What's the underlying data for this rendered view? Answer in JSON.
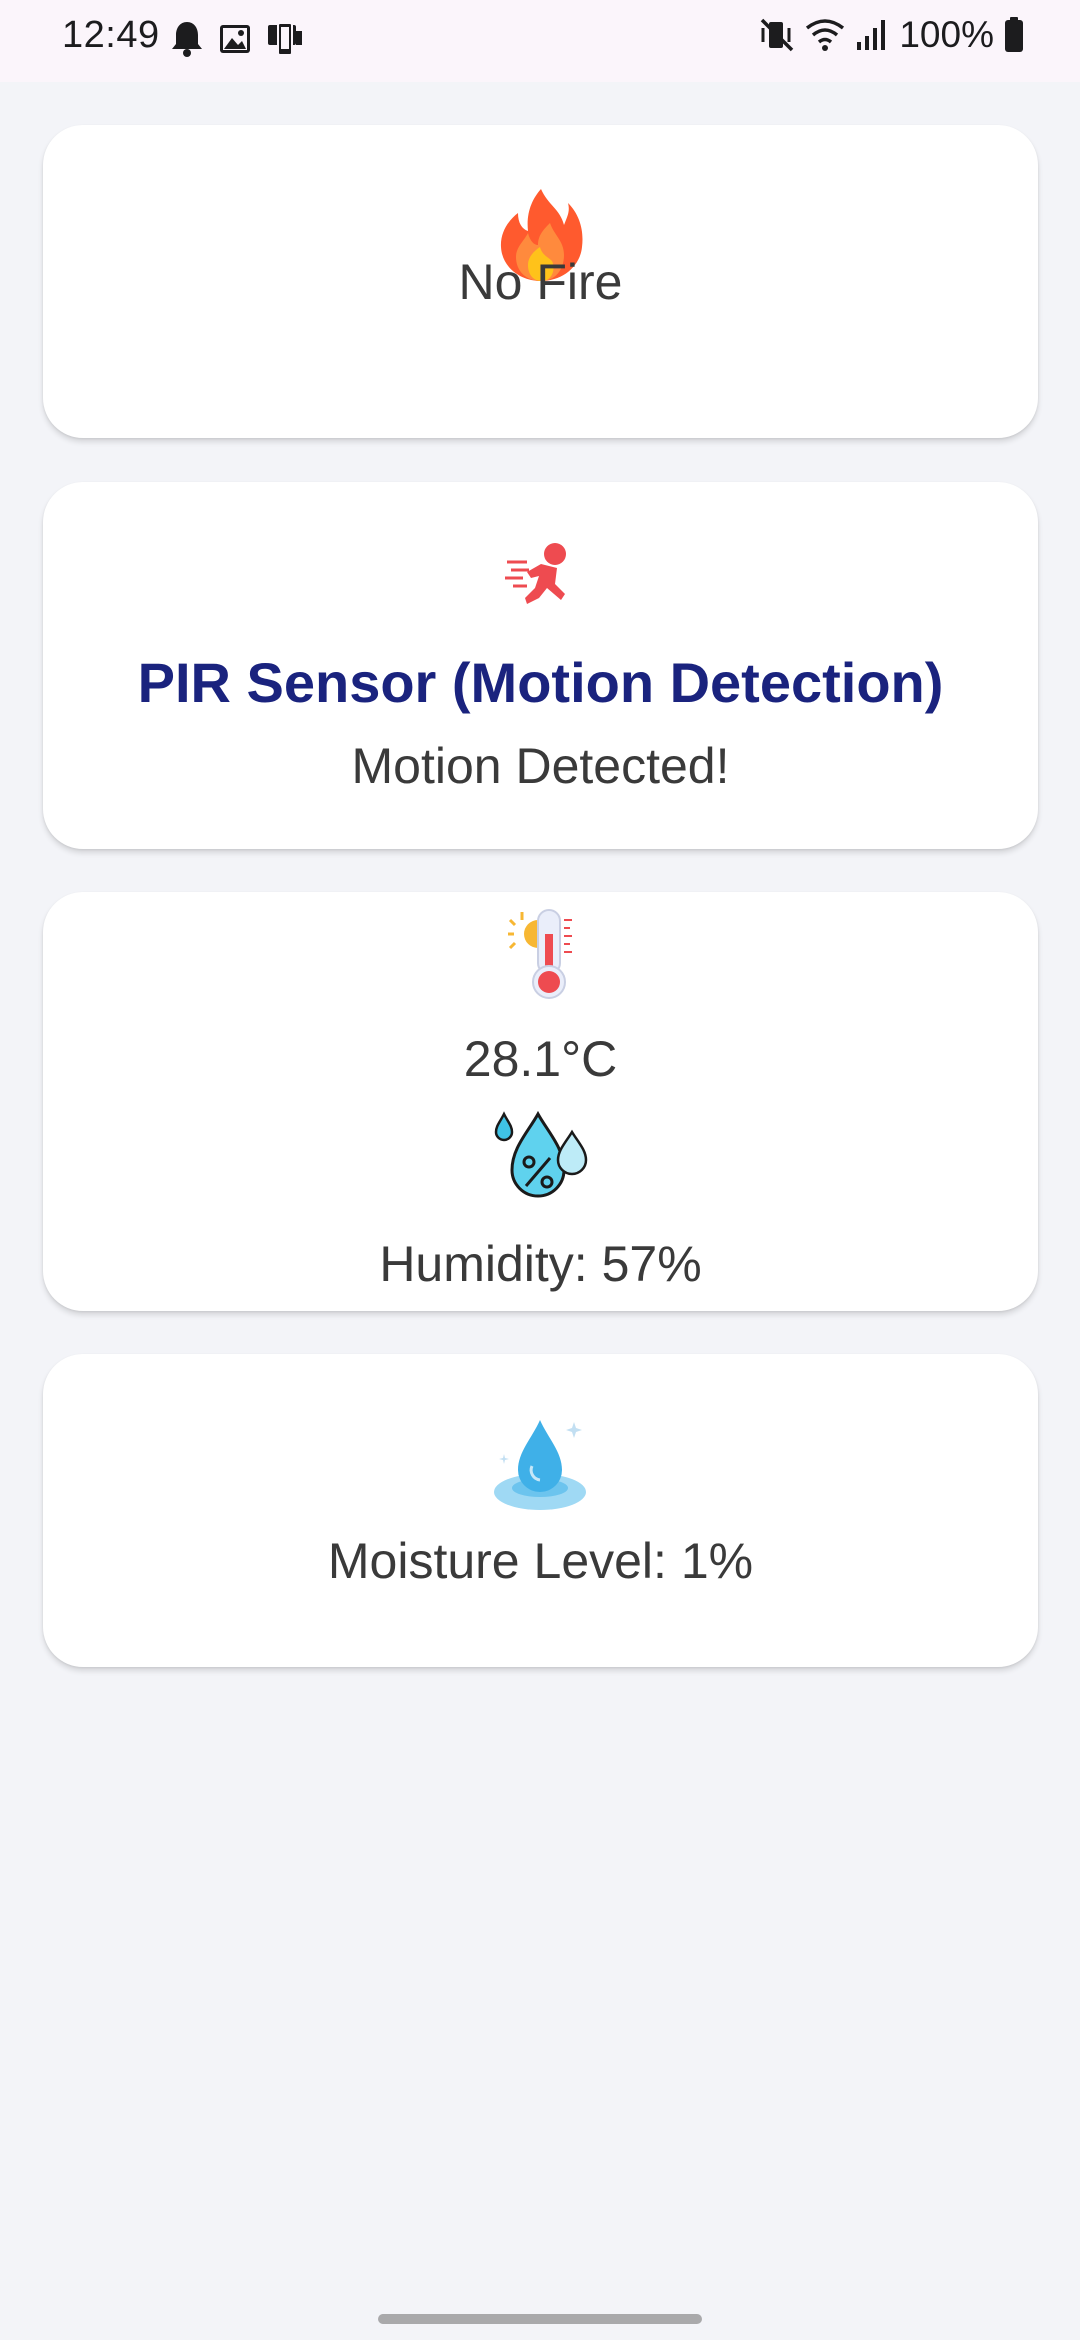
{
  "status_bar": {
    "time": "12:49",
    "battery": "100%"
  },
  "cards": {
    "fire": {
      "icon": "fire-icon",
      "status": "No Fire"
    },
    "pir": {
      "icon": "running-person-icon",
      "title": "PIR Sensor (Motion Detection)",
      "status": "Motion Detected!"
    },
    "climate": {
      "temp_icon": "thermometer-sun-icon",
      "temperature": "28.1°C",
      "humidity_icon": "humidity-drops-icon",
      "humidity": "Humidity: 57%"
    },
    "moisture": {
      "icon": "water-drop-icon",
      "level": "Moisture Level: 1%"
    }
  },
  "colors": {
    "background": "#f3f4f8",
    "card": "#ffffff",
    "title_accent": "#1a237e",
    "text": "#3a3a3a"
  }
}
